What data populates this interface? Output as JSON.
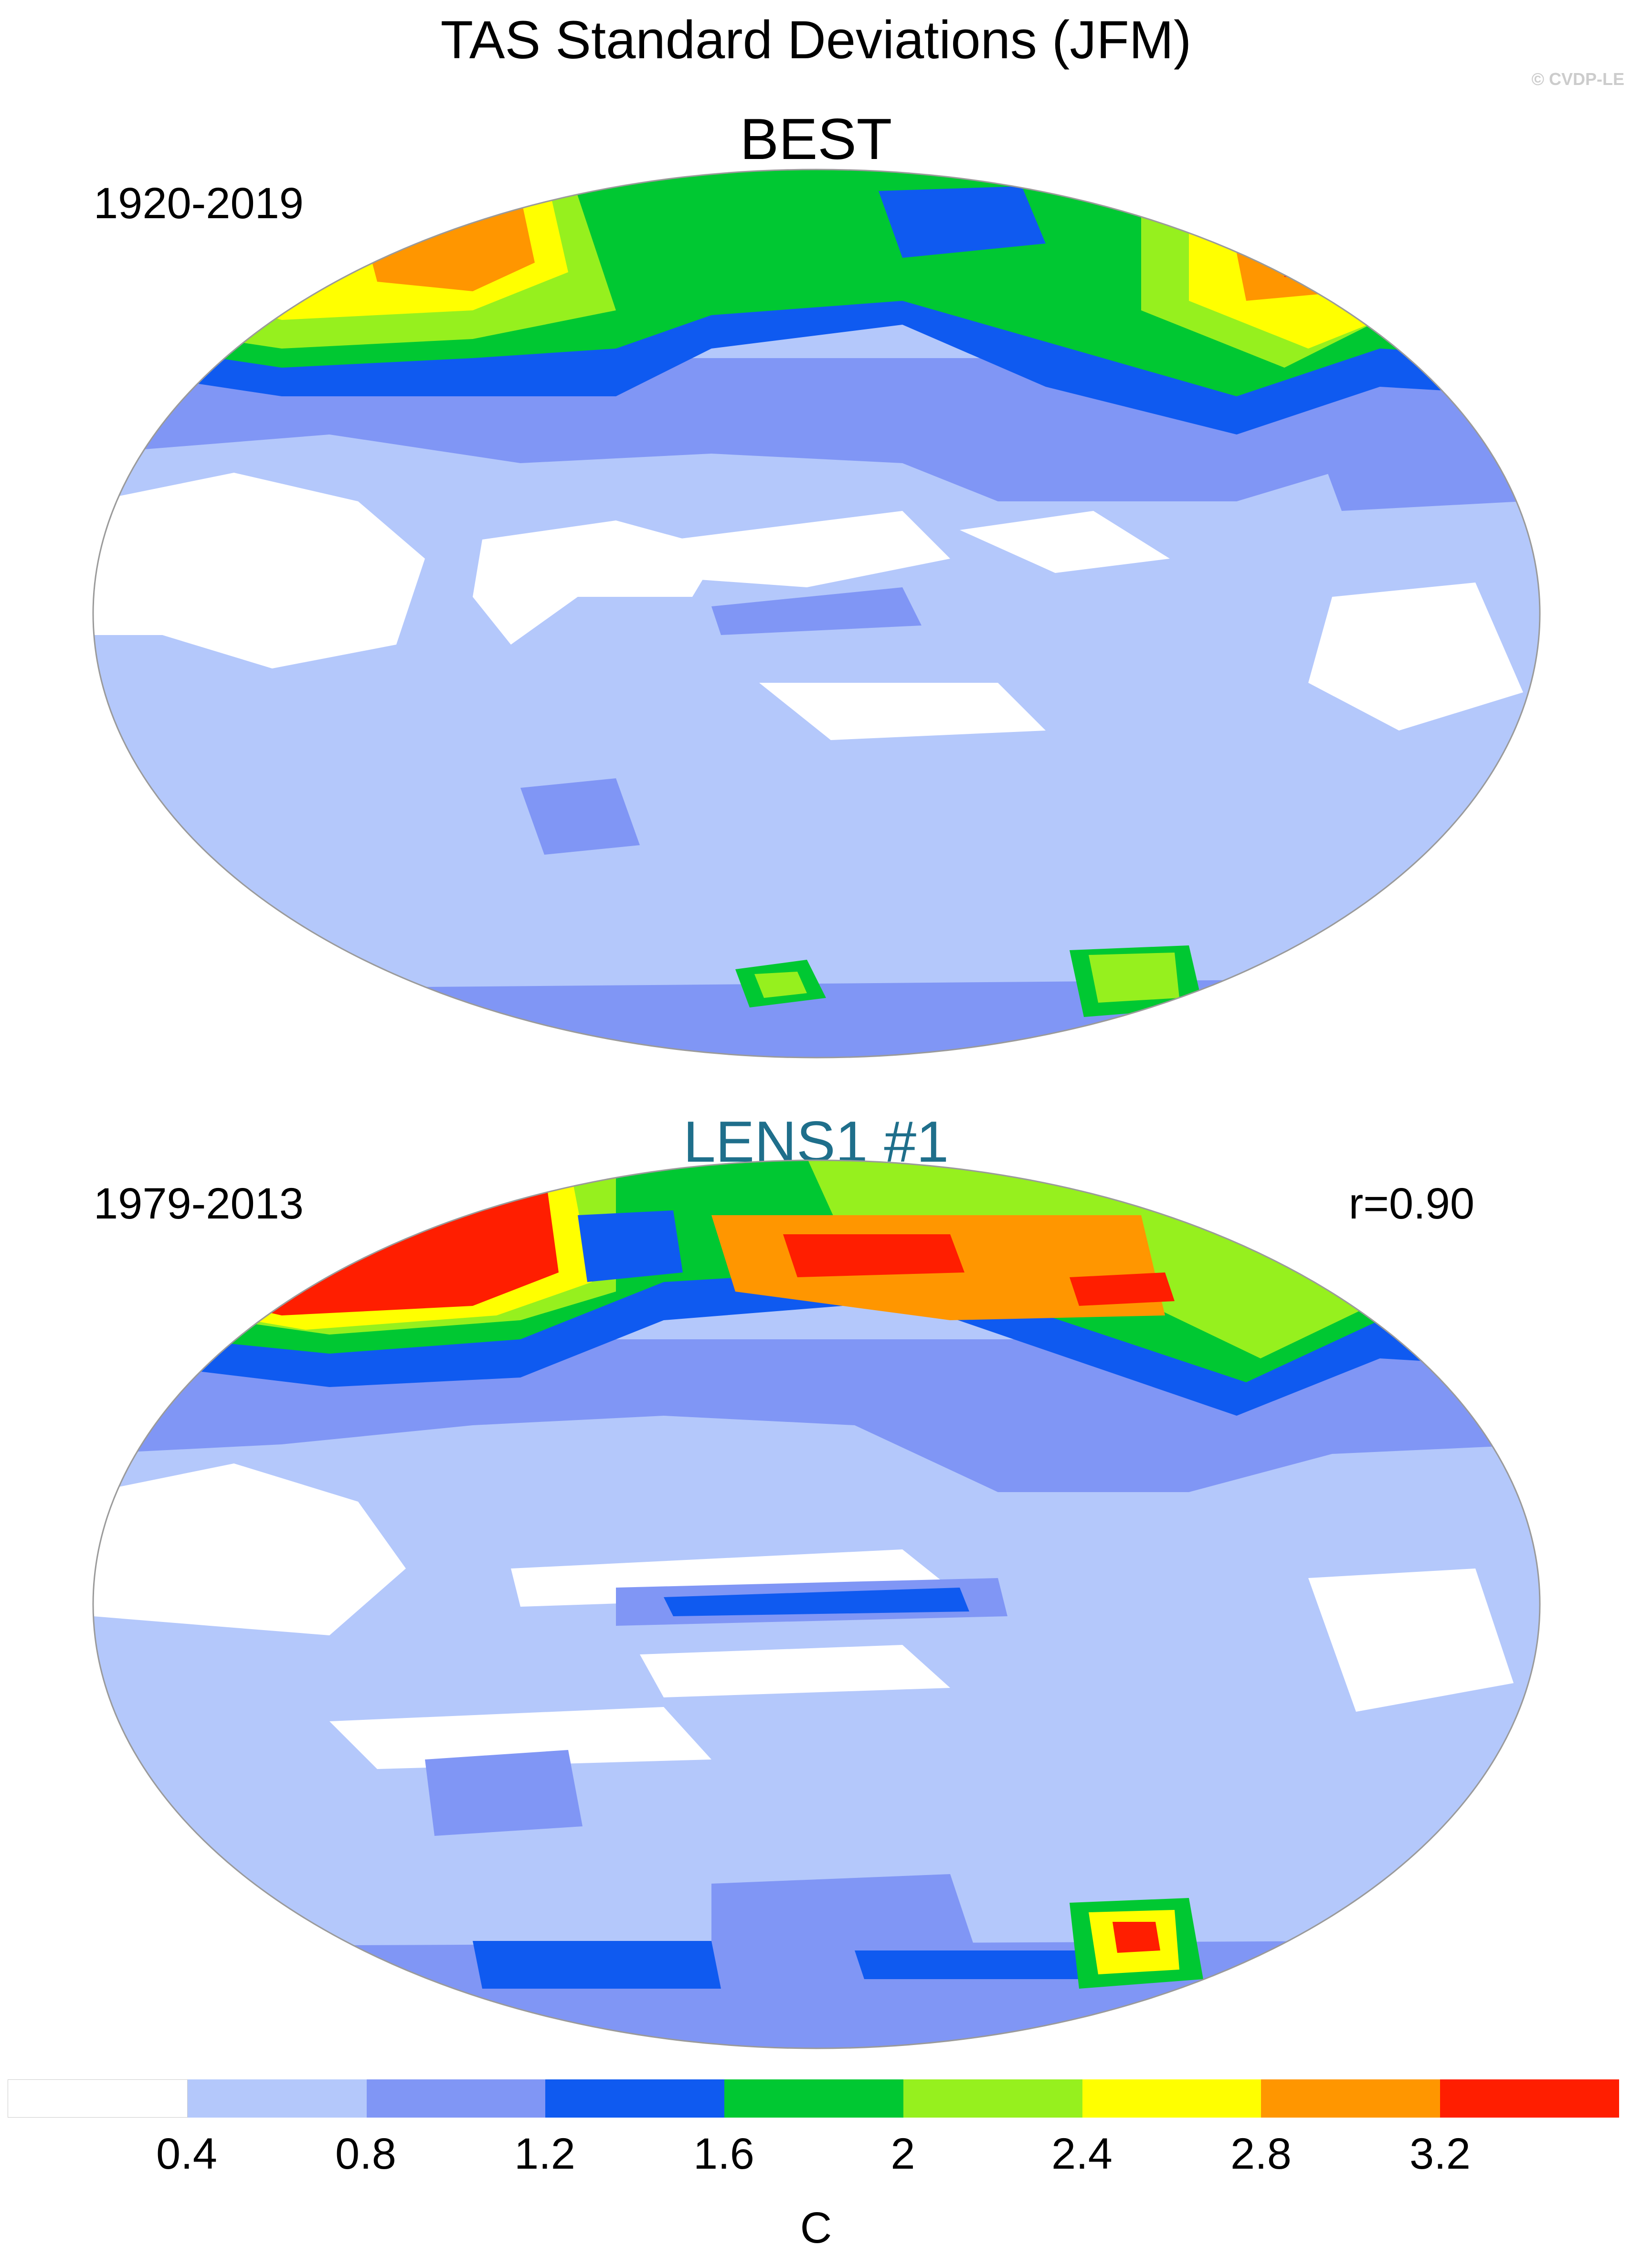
{
  "title": "TAS Standard Deviations (JFM)",
  "credit": "© CVDP-LE",
  "panels": [
    {
      "title": "BEST",
      "period": "1920-2019",
      "correlation": ""
    },
    {
      "title": "LENS1 #1",
      "period": "1979-2013",
      "correlation": "r=0.90",
      "title_color": "#1f6f8b"
    }
  ],
  "colorbar": {
    "unit": "C",
    "labels": [
      "0.4",
      "0.8",
      "1.2",
      "1.6",
      "2",
      "2.4",
      "2.8",
      "3.2"
    ],
    "colors": [
      "#ffffff",
      "#b4c8fb",
      "#8096f5",
      "#0f5af0",
      "#00c832",
      "#96f01e",
      "#ffff00",
      "#ff9600",
      "#ff1e00"
    ]
  }
}
